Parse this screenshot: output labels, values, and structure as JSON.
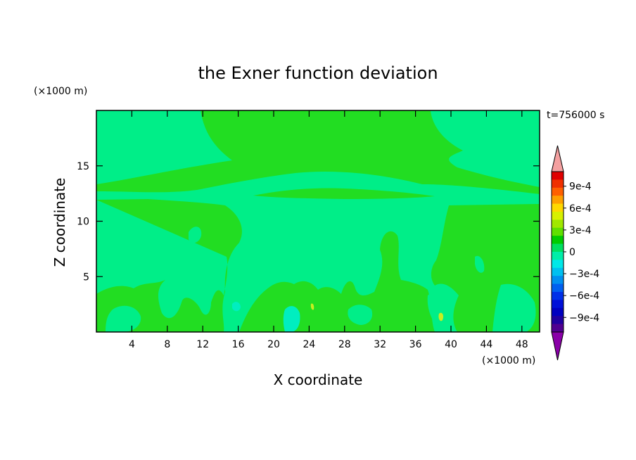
{
  "chart_data": {
    "type": "heatmap",
    "title": "the Exner function deviation",
    "xlabel": "X coordinate",
    "ylabel": "Z coordinate",
    "x_unit": "(×1000 m)",
    "y_unit": "(×1000 m)",
    "time_label": "t=756000 s",
    "xlim": [
      0,
      50
    ],
    "ylim": [
      0,
      20
    ],
    "x_ticks": [
      4,
      8,
      12,
      16,
      20,
      24,
      28,
      32,
      36,
      40,
      44,
      48
    ],
    "y_ticks": [
      5,
      10,
      15
    ],
    "colorbar": {
      "min": -0.0011,
      "max": 0.0011,
      "step": 0.0001,
      "labels": [
        "9e-4",
        "6e-4",
        "3e-4",
        "0",
        "−3e-4",
        "−6e-4",
        "−9e-4"
      ],
      "label_values": [
        0.0009,
        0.0006,
        0.0003,
        0,
        -0.0003,
        -0.0006,
        -0.0009
      ],
      "colors_top_to_bottom": [
        "#e00000",
        "#f03000",
        "#ff6000",
        "#ffa000",
        "#ffd800",
        "#d8f000",
        "#a0e800",
        "#60e000",
        "#00cc00",
        "#00e060",
        "#00eea8",
        "#00e8e8",
        "#00c0f0",
        "#0090f0",
        "#0060f0",
        "#0030e8",
        "#0010d8",
        "#0000c0",
        "#2000a0",
        "#500090"
      ],
      "over_color": "#f4a0a0",
      "under_color": "#8a00a8"
    },
    "field_colors": {
      "near_zero_negative": "#00ee88",
      "zero_positive": "#22dd22",
      "slight_negative": "#00eec0",
      "slight_positive": "#c8ee20"
    }
  }
}
